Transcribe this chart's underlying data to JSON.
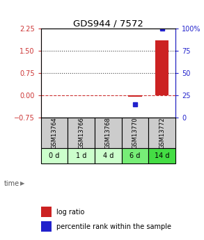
{
  "title": "GDS944 / 7572",
  "samples": [
    "GSM13764",
    "GSM13766",
    "GSM13768",
    "GSM13770",
    "GSM13772"
  ],
  "time_labels": [
    "0 d",
    "1 d",
    "4 d",
    "6 d",
    "14 d"
  ],
  "log_ratio": [
    null,
    null,
    null,
    -0.05,
    1.85
  ],
  "percentile_rank": [
    null,
    null,
    null,
    15,
    100
  ],
  "ylim_left": [
    -0.75,
    2.25
  ],
  "ylim_right": [
    0,
    100
  ],
  "yticks_left": [
    -0.75,
    0,
    0.75,
    1.5,
    2.25
  ],
  "yticks_right": [
    0,
    25,
    50,
    75,
    100
  ],
  "hlines": [
    0,
    0.75,
    1.5
  ],
  "hline_styles": [
    "dashed",
    "dotted",
    "dotted"
  ],
  "hline_colors": [
    "#cc3333",
    "#444444",
    "#444444"
  ],
  "bar_color": "#cc2222",
  "dot_color": "#2222cc",
  "sample_bg_color": "#cccccc",
  "time_bg_colors": [
    "#ccffcc",
    "#ccffcc",
    "#ccffcc",
    "#77ee77",
    "#44dd44"
  ],
  "legend_bar_color": "#cc2222",
  "legend_dot_color": "#2222cc",
  "bar_width": 0.5,
  "left_tick_color": "#cc3333",
  "right_tick_color": "#2222cc"
}
